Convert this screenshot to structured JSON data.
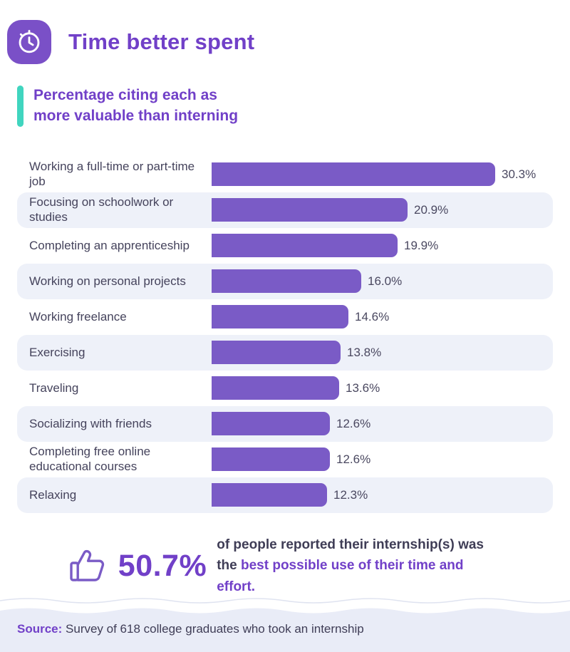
{
  "header": {
    "title": "Time better spent",
    "icon": "clock-icon"
  },
  "subtitle": {
    "line1": "Percentage citing each as",
    "line2": "more valuable than interning"
  },
  "chart_data": {
    "type": "bar",
    "orientation": "horizontal",
    "title": "Percentage citing each as more valuable than interning",
    "xlabel": "",
    "ylabel": "",
    "xlim": [
      0,
      32
    ],
    "grid": false,
    "legend": "none",
    "bar_color": "#7a5bc6",
    "row_alt_color": "#eef1f9",
    "categories": [
      "Working a full-time or part-time job",
      "Focusing on schoolwork or studies",
      "Completing an apprenticeship",
      "Working on personal projects",
      "Working freelance",
      "Exercising",
      "Traveling",
      "Socializing with friends",
      "Completing free online educational courses",
      "Relaxing"
    ],
    "values": [
      30.3,
      20.9,
      19.9,
      16.0,
      14.6,
      13.8,
      13.6,
      12.6,
      12.6,
      12.3
    ],
    "labels": [
      "30.3%",
      "20.9%",
      "19.9%",
      "16.0%",
      "14.6%",
      "13.8%",
      "13.6%",
      "12.6%",
      "12.6%",
      "12.3%"
    ]
  },
  "callout": {
    "stat": "50.7%",
    "line1": "of people reported their internship(s) was",
    "line2_prefix": "the ",
    "line2_highlight": "best possible use of their time and effort",
    "line2_suffix": "."
  },
  "footer": {
    "source_label": "Source:",
    "source_text": " Survey of 618 college graduates who took an internship"
  },
  "colors": {
    "purple_heading": "#7140c8",
    "purple_bar": "#7a5bc6",
    "teal_accent": "#40d5bf",
    "row_background": "#eef1f9",
    "footer_background": "#e9ecf7",
    "text_dark": "#3f3d56"
  }
}
